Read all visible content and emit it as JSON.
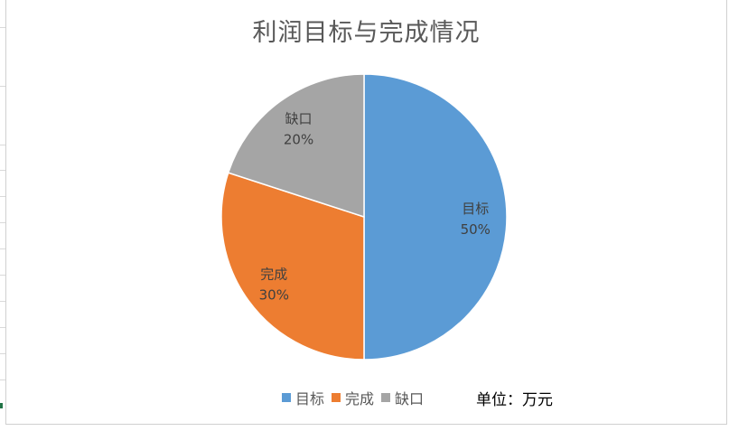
{
  "chart_data": {
    "type": "pie",
    "title": "利润目标与完成情况",
    "slices": [
      {
        "label": "目标",
        "value": 50,
        "percent_label": "50%",
        "color": "#5b9bd5"
      },
      {
        "label": "完成",
        "value": 30,
        "percent_label": "30%",
        "color": "#ed7d31"
      },
      {
        "label": "缺口",
        "value": 20,
        "percent_label": "20%",
        "color": "#a5a5a5"
      }
    ],
    "start_angle_deg": 0,
    "direction": "clockwise",
    "legend": {
      "placement": "bottom",
      "entries": [
        "目标",
        "完成",
        "缺口"
      ]
    },
    "unit_note": "单位：万元"
  }
}
